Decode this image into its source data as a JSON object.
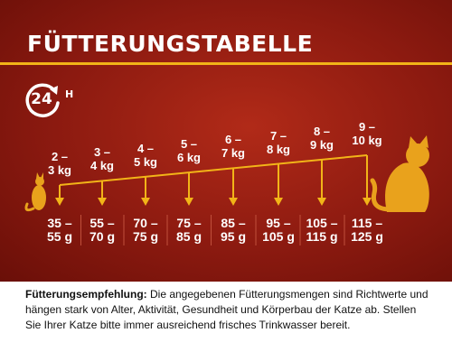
{
  "title": "FÜTTERUNGSTABELLE",
  "badge": {
    "number": "24",
    "unit": "H"
  },
  "weights": [
    {
      "top": "2 –",
      "bottom": "3 kg"
    },
    {
      "top": "3 –",
      "bottom": "4 kg"
    },
    {
      "top": "4 –",
      "bottom": "5 kg"
    },
    {
      "top": "5 –",
      "bottom": "6 kg"
    },
    {
      "top": "6 –",
      "bottom": "7 kg"
    },
    {
      "top": "7 –",
      "bottom": "8 kg"
    },
    {
      "top": "8 –",
      "bottom": "9 kg"
    },
    {
      "top": "9 –",
      "bottom": "10 kg"
    }
  ],
  "amounts": [
    {
      "top": "35 –",
      "bottom": "55 g"
    },
    {
      "top": "55 –",
      "bottom": "70 g"
    },
    {
      "top": "70 –",
      "bottom": "75 g"
    },
    {
      "top": "75 –",
      "bottom": "85 g"
    },
    {
      "top": "85 –",
      "bottom": "95 g"
    },
    {
      "top": "95 –",
      "bottom": "105 g"
    },
    {
      "top": "105 –",
      "bottom": "115 g"
    },
    {
      "top": "115 –",
      "bottom": "125 g"
    }
  ],
  "note": {
    "label": "Fütterungsempfehlung:",
    "text": " Die angegebenen Fütterungsmengen sind Richtwerte und hängen stark von Alter, Aktivität, Gesundheit und Körperbau der Katze ab. Stellen Sie Ihrer Katze bitte immer ausreichend frisches Trinkwasser bereit."
  },
  "colors": {
    "background": "#8c1a10",
    "accent": "#f2b418",
    "cat": "#e9a21c",
    "text_light": "#ffffff"
  },
  "icons": {
    "badge": "24h-clock-arrow-icon",
    "small_cat": "sitting-cat-small-icon",
    "large_cat": "sitting-cat-large-icon",
    "arrow": "arrow-down-icon"
  }
}
